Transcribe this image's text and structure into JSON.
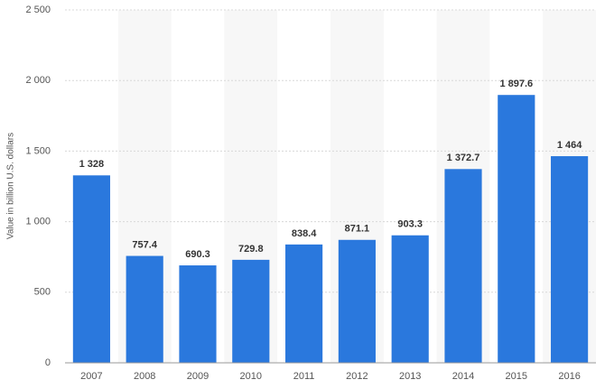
{
  "chart_data": {
    "type": "bar",
    "y_label": "Value in billion U.S. dollars",
    "categories": [
      "2007",
      "2008",
      "2009",
      "2010",
      "2011",
      "2012",
      "2013",
      "2014",
      "2015",
      "2016"
    ],
    "values": [
      1328,
      757.4,
      690.3,
      729.8,
      838.4,
      871.1,
      903.3,
      1372.7,
      1897.6,
      1464
    ],
    "value_labels": [
      "1 328",
      "757.4",
      "690.3",
      "729.8",
      "838.4",
      "871.1",
      "903.3",
      "1 372.7",
      "1 897.6",
      "1 464"
    ],
    "color": "#2a78dd",
    "ylim": [
      0,
      2500
    ],
    "yticks": [
      0,
      500,
      {
        "value": 1000,
        "label": "1 000"
      },
      {
        "value": 1500,
        "label": "1 500"
      },
      {
        "value": 2000,
        "label": "2 000"
      },
      {
        "value": 2500,
        "label": "2 500"
      }
    ],
    "grid": true
  }
}
